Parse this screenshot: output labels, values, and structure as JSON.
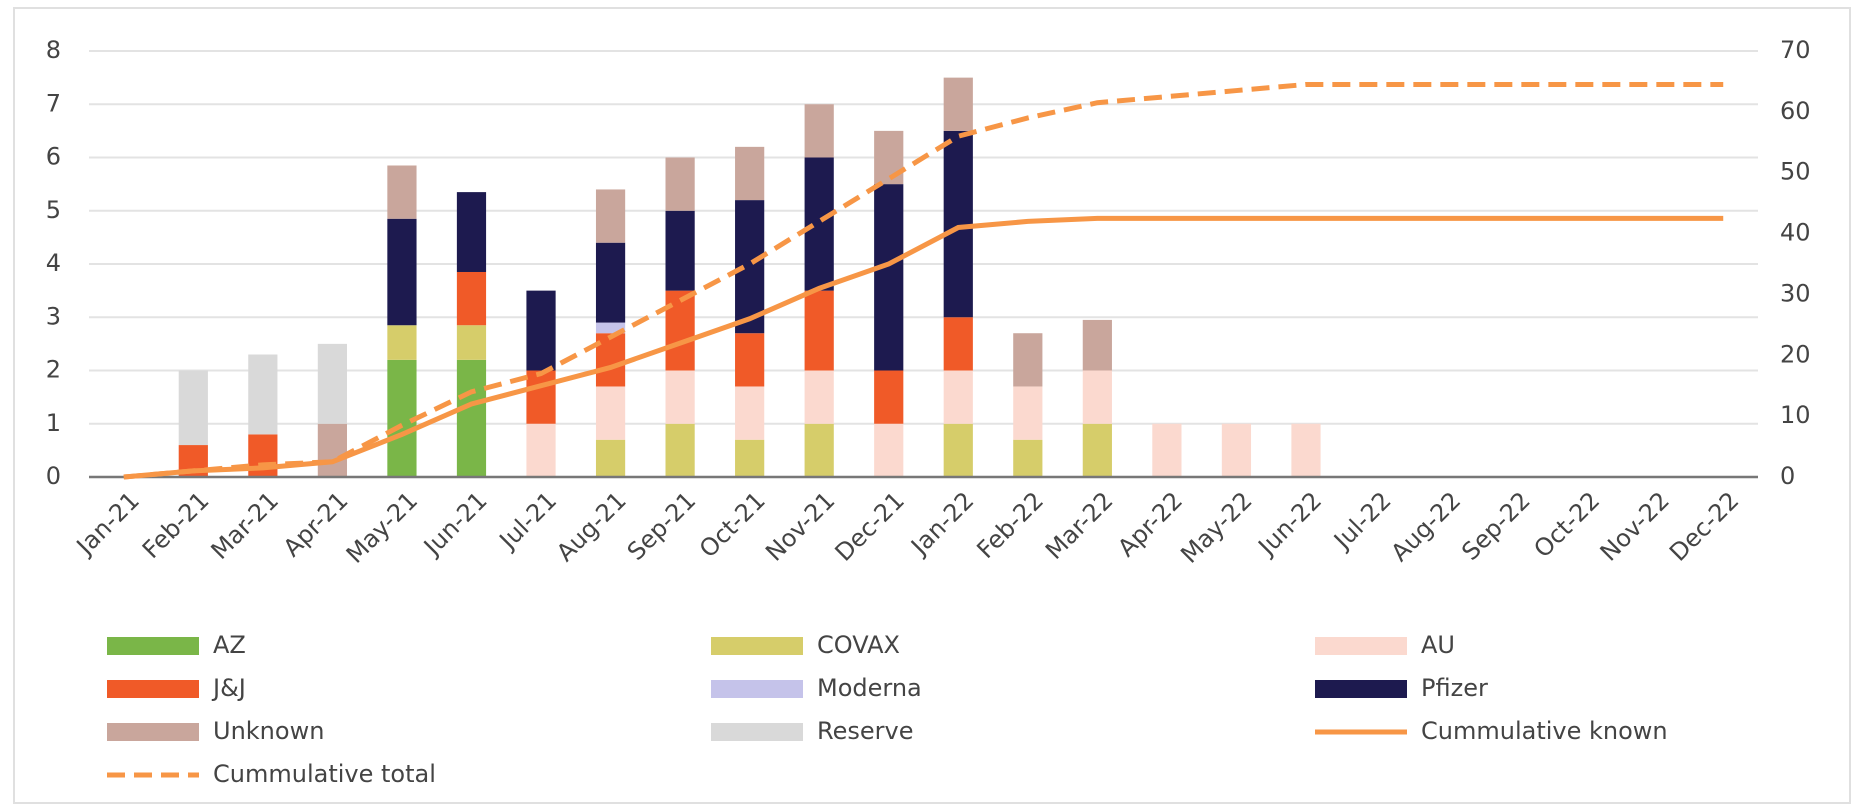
{
  "chart_data": {
    "type": "bar",
    "stacked": true,
    "categories": [
      "Jan-21",
      "Feb-21",
      "Mar-21",
      "Apr-21",
      "May-21",
      "Jun-21",
      "Jul-21",
      "Aug-21",
      "Sep-21",
      "Oct-21",
      "Nov-21",
      "Dec-21",
      "Jan-22",
      "Feb-22",
      "Mar-22",
      "Apr-22",
      "May-22",
      "Jun-22",
      "Jul-22",
      "Aug-22",
      "Sep-22",
      "Oct-22",
      "Nov-22",
      "Dec-22"
    ],
    "series": [
      {
        "name": "AZ",
        "color": "#7ab648",
        "values": [
          0,
          0,
          0,
          0,
          2.2,
          2.2,
          0,
          0,
          0,
          0,
          0,
          0,
          0,
          0,
          0,
          0,
          0,
          0,
          0,
          0,
          0,
          0,
          0,
          0
        ]
      },
      {
        "name": "COVAX",
        "color": "#d6cd6a",
        "values": [
          0,
          0,
          0,
          0,
          0.65,
          0.65,
          0,
          0.7,
          1,
          0.7,
          1,
          0,
          1,
          0.7,
          1,
          0,
          0,
          0,
          0,
          0,
          0,
          0,
          0,
          0
        ]
      },
      {
        "name": "AU",
        "color": "#fbd9cf",
        "values": [
          0,
          0,
          0,
          0,
          0,
          0,
          1,
          1,
          1,
          1,
          1,
          1,
          1,
          1,
          1,
          1,
          1,
          1,
          0,
          0,
          0,
          0,
          0,
          0
        ]
      },
      {
        "name": "J&J",
        "color": "#f05a28",
        "values": [
          0,
          0.6,
          0.8,
          0,
          0,
          1,
          1,
          1,
          1.5,
          1,
          1.5,
          1,
          1,
          0,
          0,
          0,
          0,
          0,
          0,
          0,
          0,
          0,
          0,
          0
        ]
      },
      {
        "name": "Moderna",
        "color": "#c5c3ea",
        "values": [
          0,
          0,
          0,
          0,
          0,
          0,
          0,
          0.2,
          0,
          0,
          0,
          0,
          0,
          0,
          0,
          0,
          0,
          0,
          0,
          0,
          0,
          0,
          0,
          0
        ]
      },
      {
        "name": "Pfizer",
        "color": "#1d1a4f",
        "values": [
          0,
          0,
          0,
          0,
          2,
          1.5,
          1.5,
          1.5,
          1.5,
          2.5,
          2.5,
          3.5,
          3.5,
          0,
          0,
          0,
          0,
          0,
          0,
          0,
          0,
          0,
          0,
          0
        ]
      },
      {
        "name": "Unknown",
        "color": "#c9a69c",
        "values": [
          0,
          0,
          0,
          1,
          1,
          0,
          0,
          1,
          1,
          1,
          1,
          1,
          1,
          1,
          0.95,
          0,
          0,
          0,
          0,
          0,
          0,
          0,
          0,
          0
        ]
      },
      {
        "name": "Reserve",
        "color": "#d9d9d9",
        "values": [
          0,
          1.4,
          1.5,
          1.5,
          0,
          0,
          0,
          0,
          0,
          0,
          0,
          0,
          0,
          0,
          0,
          0,
          0,
          0,
          0,
          0,
          0,
          0,
          0,
          0
        ]
      },
      {
        "name": "Cummulative known",
        "color": "#f79646",
        "type": "line",
        "axis": "y2",
        "dashed": false,
        "values": [
          0,
          1,
          1.5,
          2.5,
          7,
          12,
          15,
          18,
          22,
          26,
          31,
          35,
          41,
          42,
          42.5,
          42.5,
          42.5,
          42.5,
          42.5,
          42.5,
          42.5,
          42.5,
          42.5,
          42.5
        ]
      },
      {
        "name": "Cummulative total",
        "color": "#f79646",
        "type": "line",
        "axis": "y2",
        "dashed": true,
        "values": [
          0,
          1,
          2,
          2.5,
          8.5,
          14,
          17,
          23,
          29,
          35,
          42,
          49,
          56,
          59,
          61.5,
          62.5,
          63.5,
          64.5,
          64.5,
          64.5,
          64.5,
          64.5,
          64.5,
          64.5
        ]
      }
    ],
    "ylim": [
      0,
      8
    ],
    "yticks": [
      0,
      1,
      2,
      3,
      4,
      5,
      6,
      7,
      8
    ],
    "y2lim": [
      0,
      70
    ],
    "y2ticks": [
      0,
      10,
      20,
      30,
      40,
      50,
      60,
      70
    ],
    "grid": true,
    "legend": "bottom"
  }
}
